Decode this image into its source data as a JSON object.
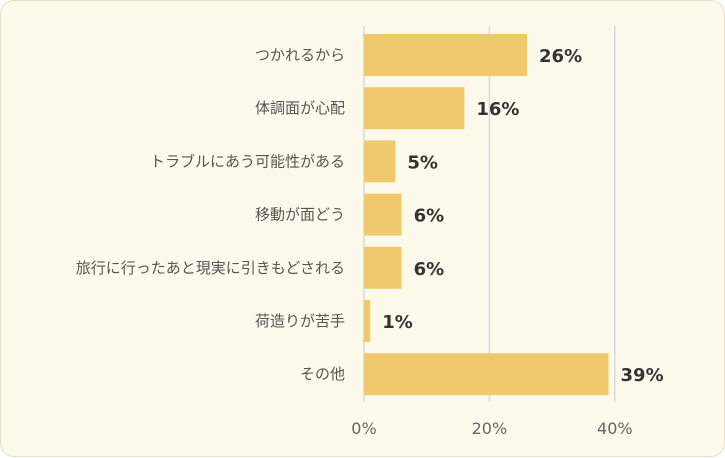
{
  "chart_data": {
    "type": "bar",
    "orientation": "horizontal",
    "categories": [
      "つかれるから",
      "体調面が心配",
      "トラブルにあう可能性がある",
      "移動が面どう",
      "旅行に行ったあと現実に引きもどされる",
      "荷造りが苦手",
      "その他"
    ],
    "values": [
      26,
      16,
      5,
      6,
      6,
      1,
      39
    ],
    "value_labels": [
      "26%",
      "16%",
      "5%",
      "6%",
      "6%",
      "1%",
      "39%"
    ],
    "xlim": [
      0,
      40
    ],
    "ticks": [
      0,
      20,
      40
    ],
    "tick_labels": [
      "0%",
      "20%",
      "40%"
    ],
    "grid": true,
    "colors": {
      "bar": "#f0c96e",
      "background": "#fdfaec"
    }
  }
}
